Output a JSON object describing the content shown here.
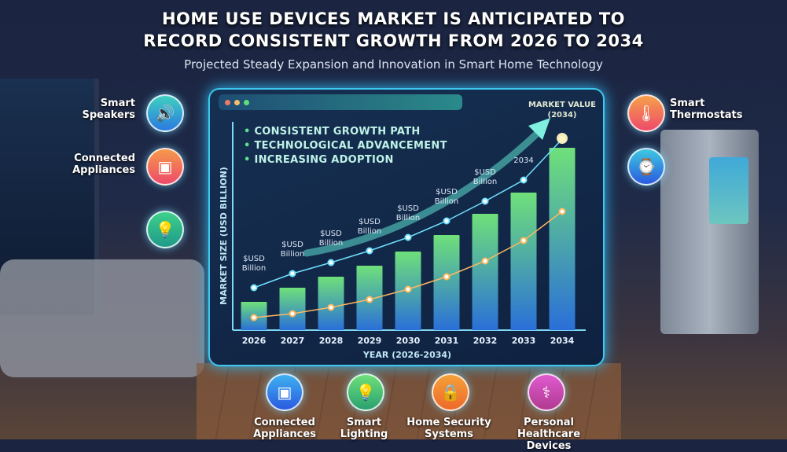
{
  "header": {
    "title_line1": "HOME USE DEVICES MARKET IS ANTICIPATED TO",
    "title_line2": "RECORD CONSISTENT GROWTH FROM 2026 TO 2034",
    "subtitle": "Projected Steady Expansion and Innovation in Smart Home Technology"
  },
  "panel": {
    "bullets": [
      "CONSISTENT GROWTH PATH",
      "TECHNOLOGICAL ADVANCEMENT",
      "INCREASING ADOPTION"
    ],
    "market_value_line1": "MARKET VALUE",
    "market_value_line2": "(2034)"
  },
  "left_icons": [
    {
      "label_line1": "Smart",
      "label_line2": "Speakers",
      "icon": "smart-speaker-icon",
      "color": "#2fa3e0"
    },
    {
      "label_line1": "Connected",
      "label_line2": "Appliances",
      "icon": "washing-machine-icon",
      "color": "#f26a4a"
    },
    {
      "label_line1": "",
      "label_line2": "",
      "icon": "lightbulb-icon",
      "color": "#33c07a"
    }
  ],
  "right_icons": [
    {
      "label_line1": "Smart",
      "label_line2": "Thermostats",
      "icon": "thermometer-icon",
      "color": "#f0604a"
    },
    {
      "label_line1": "",
      "label_line2": "",
      "icon": "smartwatch-icon",
      "color": "#2f8fe0"
    }
  ],
  "bottom_icons": [
    {
      "label_line1": "Connected",
      "label_line2": "Appliances",
      "icon": "washing-machine-icon",
      "color": "#2f8fe0"
    },
    {
      "label_line1": "Smart",
      "label_line2": "Lighting",
      "icon": "lightbulb-icon",
      "color": "#3cc070"
    },
    {
      "label_line1": "Home Security",
      "label_line2": "Systems",
      "icon": "shield-lock-icon",
      "color": "#f27a2a"
    },
    {
      "label_line1": "Personal Healthcare",
      "label_line2": "Devices",
      "icon": "stethoscope-icon",
      "color": "#d04aa8"
    }
  ],
  "chart_data": {
    "type": "bar",
    "title": "",
    "xlabel": "YEAR (2026-2034)",
    "ylabel": "MARKET SIZE (USD BILLION)",
    "categories": [
      "2026",
      "2027",
      "2028",
      "2029",
      "2030",
      "2031",
      "2032",
      "2033",
      "2034"
    ],
    "values": [
      36,
      54,
      68,
      82,
      100,
      121,
      148,
      175,
      232
    ],
    "ylim": [
      0,
      270
    ],
    "grid": false,
    "line_series": [
      {
        "values": [
          54,
          72,
          86,
          101,
          118,
          139,
          164,
          191,
          243
        ],
        "color": "#6fe0ff"
      },
      {
        "values": [
          16,
          21,
          29,
          39,
          52,
          68,
          88,
          114,
          151
        ],
        "color": "#ffb860"
      }
    ],
    "point_labels": [
      "$USD Billion",
      "$USD Billion",
      "$USD Billion",
      "$USD Billion",
      "$USD Billion",
      "$USD Billion",
      "$USD Billion",
      "2034",
      ""
    ],
    "bar_colors": [
      "#6fe07a",
      "#2a6fd8"
    ]
  }
}
